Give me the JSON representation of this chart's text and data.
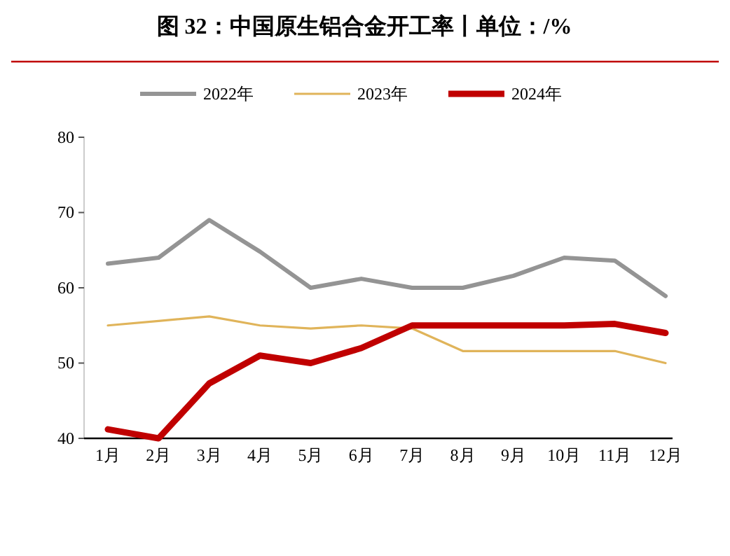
{
  "chart_data": {
    "type": "line",
    "title": "图 32：中国原生铝合金开工率丨单位：/%",
    "categories": [
      "1月",
      "2月",
      "3月",
      "4月",
      "5月",
      "6月",
      "7月",
      "8月",
      "9月",
      "10月",
      "11月",
      "12月"
    ],
    "series": [
      {
        "name": "2022年",
        "color": "#949494",
        "values": [
          63.2,
          64,
          69,
          64.8,
          60,
          61.2,
          60,
          60,
          61.6,
          64,
          63.6,
          58.9
        ]
      },
      {
        "name": "2023年",
        "color": "#e0b45a",
        "values": [
          55,
          55.6,
          56.2,
          55,
          54.6,
          55,
          54.6,
          51.6,
          51.6,
          51.6,
          51.6,
          50
        ]
      },
      {
        "name": "2024年",
        "color": "#c00000",
        "values": [
          41.2,
          40,
          47.3,
          51,
          50,
          52,
          55,
          55,
          55,
          55,
          55.2,
          54
        ]
      }
    ],
    "ylim": [
      40,
      80
    ],
    "yticks": [
      40,
      50,
      60,
      70,
      80
    ],
    "legend": "top",
    "grid": false
  }
}
